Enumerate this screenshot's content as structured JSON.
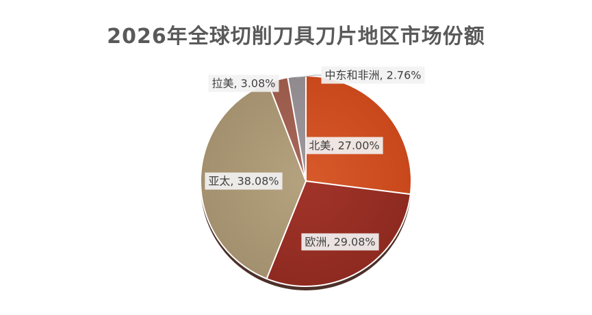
{
  "chart_data": {
    "type": "pie",
    "title": "2026年全球切削刀具刀片地区市场份额",
    "slices": [
      {
        "name": "北美",
        "value": 27.0,
        "label": "北美, 27.00%",
        "color": "#c8481c",
        "color_light": "#d85a2a",
        "color_dark": "#7a2a10"
      },
      {
        "name": "欧洲",
        "value": 29.08,
        "label": "欧洲, 29.08%",
        "color": "#8e2a20",
        "color_light": "#a2342a",
        "color_dark": "#4e130e"
      },
      {
        "name": "亚太",
        "value": 38.08,
        "label": "亚太, 38.08%",
        "color": "#a3906e",
        "color_light": "#b5a27f",
        "color_dark": "#6a5a40"
      },
      {
        "name": "拉美",
        "value": 3.08,
        "label": "拉美, 3.08%",
        "color": "#9a5a4a",
        "color_light": "#a8685a",
        "color_dark": "#5a3228"
      },
      {
        "name": "中东和非洲",
        "value": 2.76,
        "label": "中东和非洲, 2.76%",
        "color": "#908a8e",
        "color_light": "#a09aa0",
        "color_dark": "#5a5458"
      }
    ],
    "legend": "none"
  }
}
